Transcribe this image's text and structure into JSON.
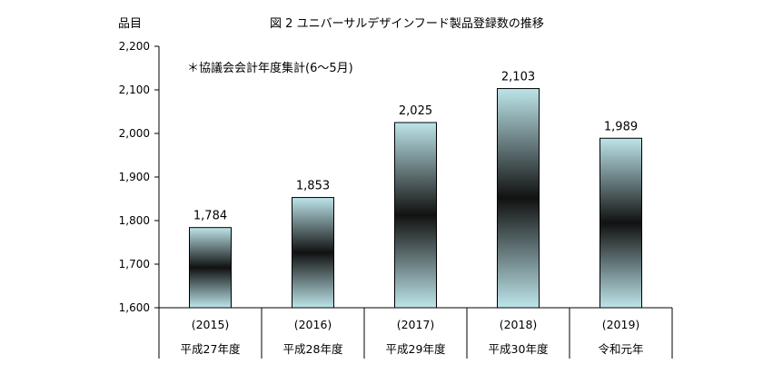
{
  "chart_data": {
    "type": "bar",
    "title": "図 2  ユニバーサルデザインフード製品登録数の推移",
    "ylabel": "品目",
    "annotation": "＊協議会会計年度集計(6～5月)",
    "categories": [
      "(2015)",
      "(2016)",
      "(2017)",
      "(2018)",
      "(2019)"
    ],
    "era_labels": [
      "平成27年度",
      "平成28年度",
      "平成29年度",
      "平成30年度",
      "令和元年"
    ],
    "values": [
      1784,
      1853,
      2025,
      2103,
      1989
    ],
    "value_labels": [
      "1,784",
      "1,853",
      "2,025",
      "2,103",
      "1,989"
    ],
    "ylim": [
      1600,
      2200
    ],
    "yticks": [
      1600,
      1700,
      1800,
      1900,
      2000,
      2100,
      2200
    ],
    "ytick_labels": [
      "1,600",
      "1,700",
      "1,800",
      "1,900",
      "2,000",
      "2,100",
      "2,200"
    ],
    "gradient_colors": [
      "#bde5ea",
      "#111111"
    ],
    "grid": false
  }
}
